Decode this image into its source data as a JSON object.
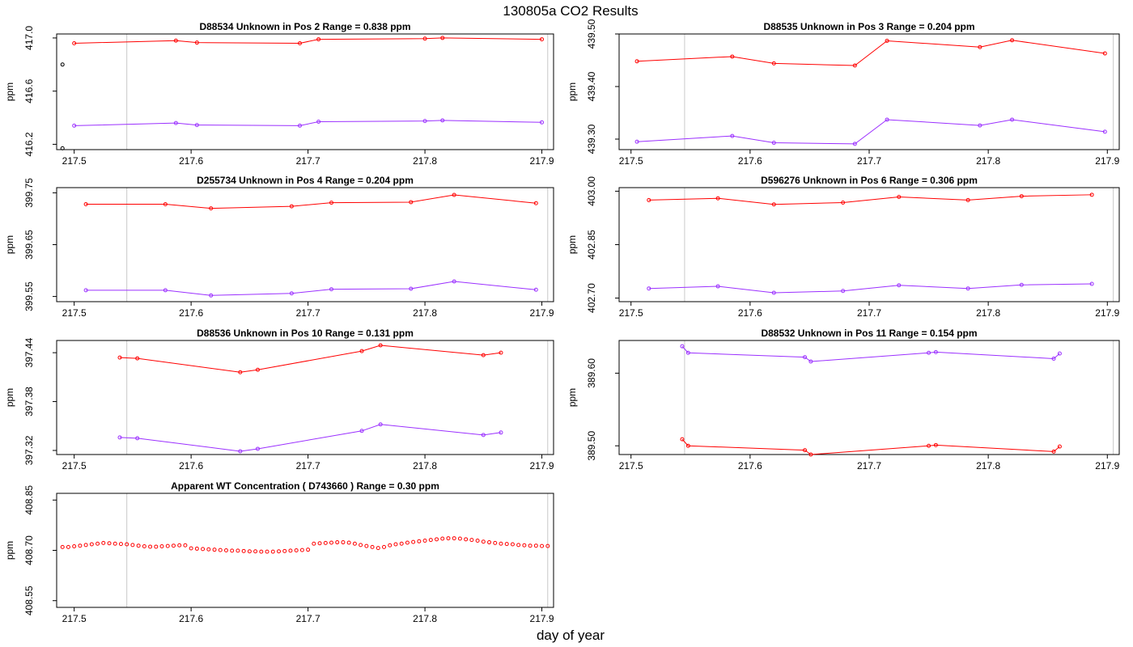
{
  "figure": {
    "title": "130805a  CO2 Results",
    "xlabel": "day of year"
  },
  "colors": {
    "reference_series": "#ff0000",
    "sample_series": "#9b30ff",
    "open_marker": "#000000",
    "vertical_lines": "#c8c8c8"
  },
  "chart_data": [
    {
      "type": "line",
      "title": "D88534    Unknown in Pos 2          Range =  0.838 ppm",
      "ylabel": "ppm",
      "xlim": [
        217.485,
        217.91
      ],
      "ylim": [
        416.16,
        417.03
      ],
      "xticks": [
        "217.5",
        "217.6",
        "217.7",
        "217.8",
        "217.9"
      ],
      "yticks": [
        "416.2",
        "416.6",
        "417.0"
      ],
      "vlines": [
        217.545,
        217.905
      ],
      "series": [
        {
          "color": "#ff0000",
          "x": [
            217.5,
            217.587,
            217.605,
            217.693,
            217.709,
            217.8,
            217.815,
            217.9
          ],
          "y": [
            416.96,
            416.98,
            416.965,
            416.96,
            416.99,
            416.995,
            417.0,
            416.99
          ]
        },
        {
          "color": "#9b30ff",
          "x": [
            217.5,
            217.587,
            217.605,
            217.693,
            217.709,
            217.8,
            217.815,
            217.9
          ],
          "y": [
            416.34,
            416.36,
            416.345,
            416.34,
            416.37,
            416.375,
            416.38,
            416.365
          ]
        }
      ],
      "extra_points": [
        {
          "color": "#000000",
          "x": [
            217.49,
            217.49
          ],
          "y": [
            416.8,
            416.17
          ]
        }
      ]
    },
    {
      "type": "line",
      "title": "D88535    Unknown in Pos 3          Range =  0.204 ppm",
      "ylabel": "ppm",
      "xlim": [
        217.49,
        217.91
      ],
      "ylim": [
        439.28,
        439.5
      ],
      "xticks": [
        "217.5",
        "217.6",
        "217.7",
        "217.8",
        "217.9"
      ],
      "yticks": [
        "439.30",
        "439.40",
        "439.50"
      ],
      "vlines": [
        217.545,
        217.905
      ],
      "series": [
        {
          "color": "#ff0000",
          "x": [
            217.505,
            217.585,
            217.62,
            217.688,
            217.715,
            217.793,
            217.82,
            217.898
          ],
          "y": [
            439.448,
            439.457,
            439.444,
            439.44,
            439.487,
            439.475,
            439.488,
            439.463
          ]
        },
        {
          "color": "#9b30ff",
          "x": [
            217.505,
            217.585,
            217.62,
            217.688,
            217.715,
            217.793,
            217.82,
            217.898
          ],
          "y": [
            439.295,
            439.306,
            439.293,
            439.291,
            439.337,
            439.326,
            439.337,
            439.314
          ]
        }
      ]
    },
    {
      "type": "line",
      "title": "D255734    Unknown in Pos 4          Range =  0.204 ppm",
      "ylabel": "ppm",
      "xlim": [
        217.485,
        217.91
      ],
      "ylim": [
        399.54,
        399.76
      ],
      "xticks": [
        "217.5",
        "217.6",
        "217.7",
        "217.8",
        "217.9"
      ],
      "yticks": [
        "399.55",
        "399.65",
        "399.75"
      ],
      "vlines": [
        217.545,
        217.905
      ],
      "series": [
        {
          "color": "#ff0000",
          "x": [
            217.51,
            217.578,
            217.617,
            217.686,
            217.72,
            217.788,
            217.825,
            217.895
          ],
          "y": [
            399.728,
            399.728,
            399.72,
            399.724,
            399.731,
            399.732,
            399.746,
            399.73
          ]
        },
        {
          "color": "#9b30ff",
          "x": [
            217.51,
            217.578,
            217.617,
            217.686,
            217.72,
            217.788,
            217.825,
            217.895
          ],
          "y": [
            399.562,
            399.562,
            399.552,
            399.556,
            399.564,
            399.565,
            399.579,
            399.563
          ]
        }
      ]
    },
    {
      "type": "line",
      "title": "D596276    Unknown in Pos 6          Range =  0.306 ppm",
      "ylabel": "ppm",
      "xlim": [
        217.49,
        217.91
      ],
      "ylim": [
        402.69,
        403.01
      ],
      "xticks": [
        "217.5",
        "217.6",
        "217.7",
        "217.8",
        "217.9"
      ],
      "yticks": [
        "402.70",
        "402.85",
        "403.00"
      ],
      "vlines": [
        217.545,
        217.905
      ],
      "series": [
        {
          "color": "#ff0000",
          "x": [
            217.515,
            217.573,
            217.62,
            217.678,
            217.725,
            217.783,
            217.828,
            217.887
          ],
          "y": [
            402.975,
            402.98,
            402.963,
            402.968,
            402.984,
            402.975,
            402.986,
            402.99
          ]
        },
        {
          "color": "#9b30ff",
          "x": [
            217.515,
            217.573,
            217.62,
            217.678,
            217.725,
            217.783,
            217.828,
            217.887
          ],
          "y": [
            402.727,
            402.733,
            402.715,
            402.72,
            402.736,
            402.727,
            402.737,
            402.74
          ]
        }
      ]
    },
    {
      "type": "line",
      "title": "D88536    Unknown in Pos 10          Range =  0.131 ppm",
      "ylabel": "ppm",
      "xlim": [
        217.485,
        217.91
      ],
      "ylim": [
        397.315,
        397.455
      ],
      "xticks": [
        "217.5",
        "217.6",
        "217.7",
        "217.8",
        "217.9"
      ],
      "yticks": [
        "397.32",
        "397.38",
        "397.44"
      ],
      "vlines": [
        217.545,
        217.905
      ],
      "series": [
        {
          "color": "#ff0000",
          "x": [
            217.539,
            217.554,
            217.642,
            217.657,
            217.746,
            217.762,
            217.85,
            217.865
          ],
          "y": [
            397.434,
            397.433,
            397.416,
            397.419,
            397.442,
            397.449,
            397.437,
            397.44
          ]
        },
        {
          "color": "#9b30ff",
          "x": [
            217.539,
            217.554,
            217.642,
            217.657,
            217.746,
            217.762,
            217.85,
            217.865
          ],
          "y": [
            397.336,
            397.335,
            397.319,
            397.322,
            397.344,
            397.352,
            397.339,
            397.342
          ]
        }
      ]
    },
    {
      "type": "line",
      "title": "D88532    Unknown in Pos 11          Range =  0.154 ppm",
      "ylabel": "ppm",
      "xlim": [
        217.49,
        217.91
      ],
      "ylim": [
        389.488,
        389.645
      ],
      "xticks": [
        "217.5",
        "217.6",
        "217.7",
        "217.8",
        "217.9"
      ],
      "yticks": [
        "389.50",
        "389.60"
      ],
      "vlines": [
        217.545,
        217.905
      ],
      "series": [
        {
          "color": "#9b30ff",
          "x": [
            217.543,
            217.548,
            217.646,
            217.651,
            217.75,
            217.756,
            217.855,
            217.86
          ],
          "y": [
            389.637,
            389.628,
            389.622,
            389.616,
            389.628,
            389.629,
            389.62,
            389.627
          ]
        },
        {
          "color": "#ff0000",
          "x": [
            217.543,
            217.548,
            217.646,
            217.651,
            217.75,
            217.756,
            217.855,
            217.86
          ],
          "y": [
            389.509,
            389.5,
            389.494,
            389.488,
            389.5,
            389.501,
            389.492,
            389.499
          ]
        }
      ]
    },
    {
      "type": "scatter",
      "title": "Apparent WT Concentration ( D743660 )          Range = 0.30 ppm",
      "ylabel": "ppm",
      "xlim": [
        217.485,
        217.91
      ],
      "ylim": [
        408.53,
        408.87
      ],
      "xticks": [
        "217.5",
        "217.6",
        "217.7",
        "217.8",
        "217.9"
      ],
      "yticks": [
        "408.55",
        "408.70",
        "408.85"
      ],
      "vlines": [
        217.545,
        217.905
      ],
      "series": [
        {
          "color": "#ff0000",
          "x": [
            217.49,
            217.495,
            217.5,
            217.505,
            217.51,
            217.515,
            217.52,
            217.525,
            217.53,
            217.535,
            217.54,
            217.545,
            217.55,
            217.555,
            217.56,
            217.565,
            217.57,
            217.575,
            217.58,
            217.585,
            217.59,
            217.595,
            217.6,
            217.605,
            217.61,
            217.615,
            217.62,
            217.625,
            217.63,
            217.635,
            217.64,
            217.645,
            217.65,
            217.655,
            217.66,
            217.665,
            217.67,
            217.675,
            217.68,
            217.685,
            217.69,
            217.695,
            217.7,
            217.705,
            217.71,
            217.715,
            217.72,
            217.725,
            217.73,
            217.735,
            217.74,
            217.745,
            217.75,
            217.755,
            217.76,
            217.765,
            217.77,
            217.775,
            217.78,
            217.785,
            217.79,
            217.795,
            217.8,
            217.805,
            217.81,
            217.815,
            217.82,
            217.825,
            217.83,
            217.835,
            217.84,
            217.845,
            217.85,
            217.855,
            217.86,
            217.865,
            217.87,
            217.875,
            217.88,
            217.885,
            217.89,
            217.895,
            217.9,
            217.905
          ],
          "y": [
            408.71,
            408.71,
            408.712,
            408.714,
            408.716,
            408.718,
            408.72,
            408.722,
            408.721,
            408.72,
            408.719,
            408.718,
            408.716,
            408.714,
            408.712,
            408.711,
            408.711,
            408.712,
            408.713,
            408.714,
            408.715,
            408.715,
            408.706,
            408.705,
            408.704,
            408.703,
            408.702,
            408.701,
            408.7,
            408.699,
            408.699,
            408.698,
            408.697,
            408.697,
            408.696,
            408.696,
            408.696,
            408.697,
            408.698,
            408.699,
            408.7,
            408.701,
            408.702,
            408.72,
            408.721,
            408.722,
            408.723,
            408.724,
            408.724,
            408.723,
            408.72,
            408.716,
            408.713,
            408.71,
            408.707,
            408.71,
            408.715,
            408.718,
            408.72,
            408.723,
            408.725,
            408.727,
            408.729,
            408.731,
            408.733,
            408.735,
            408.736,
            408.736,
            408.735,
            408.733,
            408.731,
            408.729,
            408.726,
            408.724,
            408.722,
            408.72,
            408.719,
            408.718,
            408.716,
            408.715,
            408.714,
            408.714,
            408.713,
            408.713
          ]
        }
      ]
    }
  ]
}
